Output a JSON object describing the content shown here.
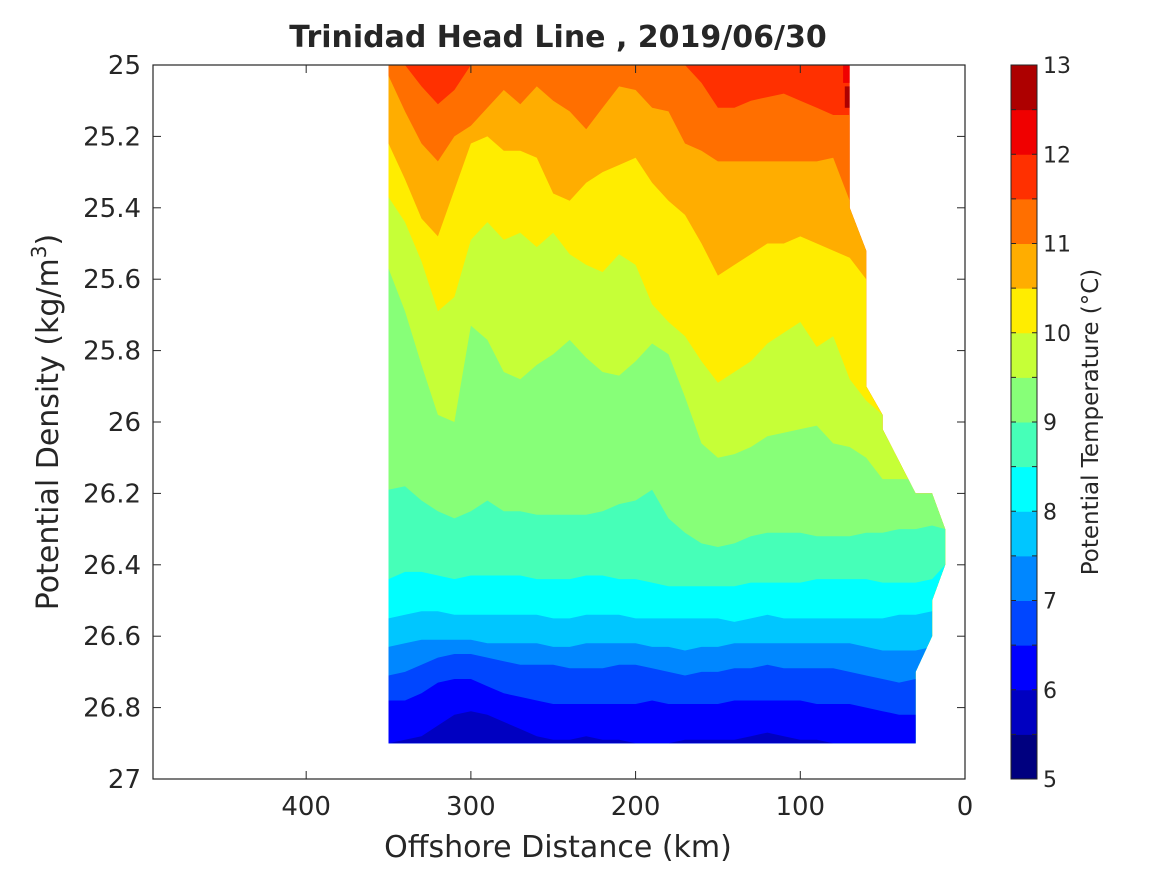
{
  "chart_data": {
    "type": "filled_contour",
    "title": "Trinidad Head Line , 2019/06/30",
    "xlabel": "Offshore Distance (km)",
    "ylabel": "Potential Density (kg/m",
    "ylabel_sup": "3",
    "ylabel_end": ")",
    "colorbar_label": "Potential Temperature (°C)",
    "x_direction": "reversed",
    "y_direction": "reversed",
    "xlim": [
      0,
      493
    ],
    "ylim": [
      25,
      27
    ],
    "x_ticks": [
      400,
      300,
      200,
      100,
      0
    ],
    "y_ticks": [
      25,
      25.2,
      25.4,
      25.6,
      25.8,
      26,
      26.2,
      26.4,
      26.6,
      26.8,
      27
    ],
    "colorbar_range": [
      5,
      13
    ],
    "colorbar_step": 0.5,
    "colorbar_ticks": [
      5,
      6,
      7,
      8,
      9,
      10,
      11,
      12,
      13
    ],
    "colormap": [
      "#00007f",
      "#0000c1",
      "#0000ff",
      "#0046ff",
      "#0087ff",
      "#00c6ff",
      "#00ffff",
      "#46ffb8",
      "#87ff78",
      "#c6ff37",
      "#ffed00",
      "#ffad00",
      "#ff6f00",
      "#ff3000",
      "#f00000",
      "#ad0000"
    ],
    "domain": {
      "top": [
        [
          350,
          25.0
        ],
        [
          70,
          25.0
        ]
      ],
      "right": [
        [
          70,
          25.0
        ],
        [
          70,
          25.4
        ],
        [
          60,
          25.52
        ],
        [
          60,
          25.9
        ],
        [
          50,
          25.98
        ],
        [
          50,
          26.02
        ],
        [
          30,
          26.2
        ],
        [
          20,
          26.2
        ],
        [
          12,
          26.3
        ],
        [
          12,
          26.4
        ],
        [
          20,
          26.5
        ],
        [
          20,
          26.6
        ],
        [
          30,
          26.7
        ],
        [
          30,
          26.9
        ]
      ],
      "bottom": [
        [
          30,
          26.9
        ],
        [
          350,
          26.9
        ]
      ]
    },
    "boundary_x": [
      350,
      340,
      330,
      320,
      310,
      300,
      290,
      280,
      270,
      260,
      250,
      240,
      230,
      220,
      210,
      200,
      190,
      180,
      170,
      160,
      150,
      140,
      130,
      120,
      110,
      100,
      90,
      80,
      70,
      60,
      50,
      40,
      30,
      20,
      12
    ],
    "isotherms": [
      {
        "level": 11.0,
        "y": [
          25.0,
          25.0,
          25.06,
          25.11,
          25.07,
          25.0,
          25.0,
          25.0,
          25.0,
          25.0,
          25.0,
          25.0,
          25.0,
          25.0,
          25.0,
          25.0,
          25.0,
          25.0,
          25.0,
          25.05,
          25.12,
          25.12,
          25.1,
          25.09,
          25.08,
          25.1,
          25.12,
          25.14,
          null
        ]
      },
      {
        "level": 10.5,
        "y": [
          25.03,
          25.13,
          25.22,
          25.27,
          25.2,
          25.17,
          25.12,
          25.07,
          25.11,
          25.06,
          25.1,
          25.13,
          25.18,
          25.12,
          25.06,
          25.07,
          25.12,
          25.13,
          25.22,
          25.24,
          25.27,
          25.27,
          25.27,
          25.27,
          25.27,
          25.27,
          25.27,
          25.26,
          25.38,
          25.44,
          null
        ]
      },
      {
        "level": 10.0,
        "y": [
          25.22,
          25.32,
          25.43,
          25.48,
          25.35,
          25.22,
          25.2,
          25.24,
          25.24,
          25.26,
          25.36,
          25.38,
          25.33,
          25.3,
          25.28,
          25.26,
          25.33,
          25.38,
          25.42,
          25.5,
          25.59,
          25.56,
          25.53,
          25.5,
          25.5,
          25.48,
          25.5,
          25.52,
          25.54,
          25.6,
          null
        ]
      },
      {
        "level": 9.5,
        "y": [
          25.37,
          25.44,
          25.55,
          25.69,
          25.65,
          25.49,
          25.44,
          25.49,
          25.47,
          25.51,
          25.47,
          25.53,
          25.56,
          25.58,
          25.53,
          25.56,
          25.67,
          25.72,
          25.76,
          25.83,
          25.89,
          25.86,
          25.83,
          25.78,
          25.75,
          25.72,
          25.79,
          25.76,
          25.88,
          25.94,
          25.98,
          null
        ]
      },
      {
        "level": 9.0,
        "y": [
          25.57,
          25.69,
          25.84,
          25.98,
          26.0,
          25.73,
          25.77,
          25.86,
          25.88,
          25.84,
          25.81,
          25.77,
          25.82,
          25.86,
          25.87,
          25.83,
          25.78,
          25.81,
          25.93,
          26.06,
          26.1,
          26.09,
          26.07,
          26.04,
          26.03,
          26.02,
          26.01,
          26.06,
          26.07,
          26.1,
          26.16,
          null
        ]
      },
      {
        "level": 8.5,
        "y": [
          26.19,
          26.18,
          26.22,
          26.25,
          26.27,
          26.25,
          26.22,
          26.25,
          26.25,
          26.26,
          26.26,
          26.26,
          26.26,
          26.25,
          26.23,
          26.22,
          26.19,
          26.27,
          26.31,
          26.34,
          26.35,
          26.34,
          26.32,
          26.31,
          26.31,
          26.31,
          26.32,
          26.32,
          26.32,
          26.31,
          26.31,
          26.3,
          26.3,
          26.29,
          26.3
        ]
      },
      {
        "level": 8.0,
        "y": [
          26.44,
          26.42,
          26.42,
          26.43,
          26.44,
          26.43,
          26.43,
          26.43,
          26.43,
          26.44,
          26.44,
          26.44,
          26.43,
          26.43,
          26.44,
          26.44,
          26.45,
          26.46,
          26.46,
          26.46,
          26.46,
          26.46,
          26.45,
          26.45,
          26.45,
          26.45,
          26.44,
          26.44,
          26.44,
          26.44,
          26.45,
          26.45,
          26.45,
          26.44,
          26.4
        ]
      },
      {
        "level": 7.5,
        "y": [
          26.55,
          26.54,
          26.53,
          26.53,
          26.54,
          26.54,
          26.54,
          26.54,
          26.54,
          26.54,
          26.55,
          26.55,
          26.54,
          26.54,
          26.54,
          26.55,
          26.55,
          26.55,
          26.55,
          26.55,
          26.55,
          26.56,
          26.55,
          26.54,
          26.55,
          26.55,
          26.55,
          26.55,
          26.55,
          26.55,
          26.55,
          26.54,
          26.54,
          26.53
        ]
      },
      {
        "level": 7.0,
        "y": [
          26.63,
          26.62,
          26.61,
          26.61,
          26.61,
          26.61,
          26.62,
          26.62,
          26.62,
          26.62,
          26.63,
          26.63,
          26.62,
          26.62,
          26.62,
          26.62,
          26.63,
          26.63,
          26.64,
          26.63,
          26.63,
          26.62,
          26.62,
          26.62,
          26.62,
          26.62,
          26.62,
          26.62,
          26.62,
          26.63,
          26.64,
          26.64,
          26.64,
          26.63
        ]
      },
      {
        "level": 6.5,
        "y": [
          26.71,
          26.7,
          26.68,
          26.66,
          26.65,
          26.65,
          26.66,
          26.67,
          26.68,
          26.68,
          26.68,
          26.69,
          26.69,
          26.69,
          26.68,
          26.68,
          26.69,
          26.7,
          26.71,
          26.7,
          26.7,
          26.69,
          26.69,
          26.68,
          26.69,
          26.69,
          26.69,
          26.69,
          26.7,
          26.71,
          26.72,
          26.73,
          26.72
        ]
      },
      {
        "level": 6.0,
        "y": [
          26.78,
          26.78,
          26.76,
          26.73,
          26.72,
          26.72,
          26.74,
          26.76,
          26.77,
          26.78,
          26.79,
          26.79,
          26.79,
          26.79,
          26.79,
          26.79,
          26.78,
          26.79,
          26.79,
          26.79,
          26.79,
          26.78,
          26.78,
          26.78,
          26.78,
          26.78,
          26.79,
          26.79,
          26.79,
          26.8,
          26.81,
          26.82,
          26.82
        ]
      },
      {
        "level": 5.5,
        "y": [
          26.9,
          26.89,
          26.88,
          26.85,
          26.82,
          26.81,
          26.82,
          26.84,
          26.86,
          26.88,
          26.89,
          26.89,
          26.88,
          26.89,
          26.89,
          26.9,
          26.9,
          26.9,
          26.89,
          26.89,
          26.89,
          26.89,
          26.88,
          26.87,
          26.88,
          26.89,
          26.89,
          26.9,
          26.9,
          26.9,
          26.9,
          26.9,
          26.9
        ]
      }
    ],
    "hot_zone": {
      "level": 11.5,
      "x_range": [
        70,
        74
      ],
      "y_range": [
        25.0,
        25.05
      ]
    },
    "hot_zone_2": {
      "level": 12.0,
      "x_range": [
        70,
        73
      ],
      "y_range": [
        25.06,
        25.12
      ]
    }
  }
}
